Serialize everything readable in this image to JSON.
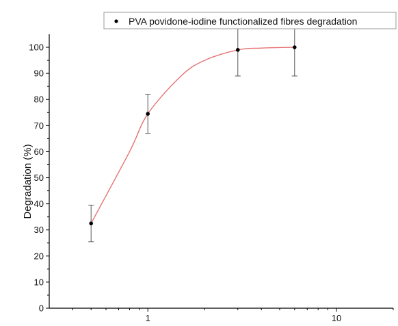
{
  "chart_data": {
    "type": "scatter",
    "xscale": "log",
    "xlim": [
      0.3,
      20
    ],
    "ylim": [
      0,
      105
    ],
    "xticks": [
      1,
      10
    ],
    "xtick_labels": [
      "1",
      "10"
    ],
    "yticks": [
      0,
      10,
      20,
      30,
      40,
      50,
      60,
      70,
      80,
      90,
      100
    ],
    "ytick_labels": [
      "0",
      "10",
      "20",
      "30",
      "40",
      "50",
      "60",
      "70",
      "80",
      "90",
      "100"
    ],
    "xlabel": "",
    "ylabel": "Degradation (%)",
    "title": "",
    "legend_position": "top-right",
    "grid": false,
    "series": [
      {
        "name": "PVA povidone-iodine functionalized fibres degradation",
        "color": "#000000",
        "points": [
          {
            "x": 0.5,
            "y": 32.5,
            "err_low": 25.5,
            "err_high": 39.5
          },
          {
            "x": 1,
            "y": 74.5,
            "err_low": 67,
            "err_high": 82
          },
          {
            "x": 3,
            "y": 99,
            "err_low": 89,
            "err_high": 110
          },
          {
            "x": 6,
            "y": 100,
            "err_low": 89,
            "err_high": 111
          }
        ]
      }
    ],
    "fit_curve": {
      "color": "#e57373",
      "points": [
        [
          0.5,
          32.5
        ],
        [
          0.8,
          60
        ],
        [
          1,
          74.5
        ],
        [
          1.5,
          89
        ],
        [
          2,
          95
        ],
        [
          3,
          99
        ],
        [
          4,
          99.7
        ],
        [
          6,
          100
        ]
      ]
    }
  }
}
